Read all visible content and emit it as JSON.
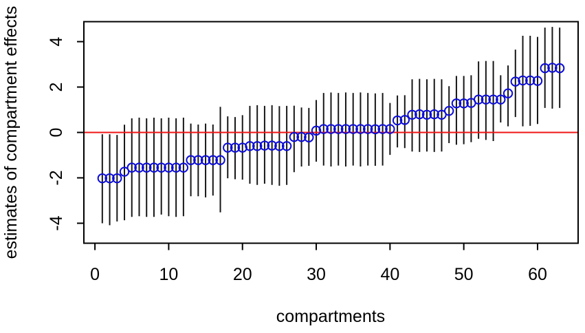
{
  "figure": {
    "background": "#ffffff"
  },
  "chart_data": {
    "type": "scatter",
    "title": "",
    "xlabel": "compartments",
    "ylabel": "estimates of compartment effects",
    "x_tick_values": [
      0,
      10,
      20,
      30,
      40,
      50,
      60
    ],
    "x_tick_labels": [
      "0",
      "10",
      "20",
      "30",
      "40",
      "50",
      "60"
    ],
    "y_tick_values": [
      -4,
      -2,
      0,
      2,
      4
    ],
    "y_tick_labels": [
      "-4",
      "-2",
      "0",
      "2",
      "4"
    ],
    "xlim": [
      -1.5,
      65.5
    ],
    "ylim": [
      -4.88,
      4.88
    ],
    "grid": false,
    "legend_position": "none",
    "reference_line_y": 0,
    "colors": {
      "reference_line": "#f01515",
      "point": "#0d0dd6",
      "error_bar": "#161616",
      "axis": "#000000",
      "text": "#000000"
    },
    "series": [
      {
        "name": "compartment effect estimates with error bars",
        "marker": "open-circle",
        "x": [
          1,
          2,
          3,
          4,
          5,
          6,
          7,
          8,
          9,
          10,
          11,
          12,
          13,
          14,
          15,
          16,
          17,
          18,
          19,
          20,
          21,
          22,
          23,
          24,
          25,
          26,
          27,
          28,
          29,
          30,
          31,
          32,
          33,
          34,
          35,
          36,
          37,
          38,
          39,
          40,
          41,
          42,
          43,
          44,
          45,
          46,
          47,
          48,
          49,
          50,
          51,
          52,
          53,
          54,
          55,
          56,
          57,
          58,
          59,
          60,
          61,
          62,
          63
        ],
        "y": [
          -2.02,
          -2.02,
          -2.02,
          -1.73,
          -1.55,
          -1.55,
          -1.55,
          -1.55,
          -1.55,
          -1.55,
          -1.55,
          -1.55,
          -1.22,
          -1.22,
          -1.22,
          -1.22,
          -1.22,
          -0.67,
          -0.67,
          -0.67,
          -0.6,
          -0.6,
          -0.58,
          -0.58,
          -0.6,
          -0.6,
          -0.2,
          -0.2,
          -0.22,
          0.08,
          0.15,
          0.15,
          0.15,
          0.15,
          0.15,
          0.15,
          0.15,
          0.14,
          0.15,
          0.15,
          0.53,
          0.55,
          0.78,
          0.8,
          0.78,
          0.8,
          0.78,
          0.95,
          1.28,
          1.28,
          1.3,
          1.45,
          1.45,
          1.45,
          1.45,
          1.72,
          2.24,
          2.29,
          2.29,
          2.27,
          2.83,
          2.85,
          2.83
        ],
        "lower": [
          -4.0,
          -4.09,
          -3.92,
          -3.87,
          -3.72,
          -3.69,
          -3.72,
          -3.72,
          -3.62,
          -3.69,
          -3.72,
          -3.69,
          -2.81,
          -2.81,
          -2.86,
          -2.78,
          -3.52,
          -2.02,
          -2.06,
          -2.08,
          -2.26,
          -2.31,
          -2.26,
          -2.31,
          -2.35,
          -2.31,
          -1.75,
          -1.5,
          -1.47,
          -1.29,
          -1.46,
          -1.5,
          -1.46,
          -1.5,
          -1.46,
          -1.5,
          -1.46,
          -1.47,
          -1.46,
          -0.99,
          -0.66,
          -0.69,
          -0.84,
          -0.86,
          -0.84,
          -0.86,
          -0.84,
          -0.47,
          -0.54,
          -0.52,
          -0.43,
          -0.28,
          -0.33,
          -0.38,
          0.44,
          0.27,
          0.68,
          0.27,
          0.29,
          0.37,
          1.08,
          1.05,
          1.08
        ],
        "upper": [
          -0.08,
          -0.08,
          -0.11,
          0.34,
          0.62,
          0.65,
          0.62,
          0.65,
          0.62,
          0.65,
          0.62,
          0.65,
          0.39,
          0.35,
          0.39,
          0.35,
          1.13,
          0.71,
          0.68,
          0.76,
          1.17,
          1.2,
          1.17,
          1.2,
          1.16,
          1.17,
          1.18,
          1.1,
          1.08,
          1.43,
          1.74,
          1.76,
          1.74,
          1.76,
          1.74,
          1.76,
          1.74,
          1.72,
          1.74,
          1.3,
          1.63,
          1.64,
          2.34,
          2.36,
          2.34,
          2.36,
          2.34,
          2.04,
          2.49,
          2.49,
          2.52,
          3.13,
          3.15,
          3.15,
          2.52,
          2.95,
          3.65,
          4.26,
          4.26,
          4.21,
          4.62,
          4.65,
          4.62
        ]
      }
    ]
  }
}
